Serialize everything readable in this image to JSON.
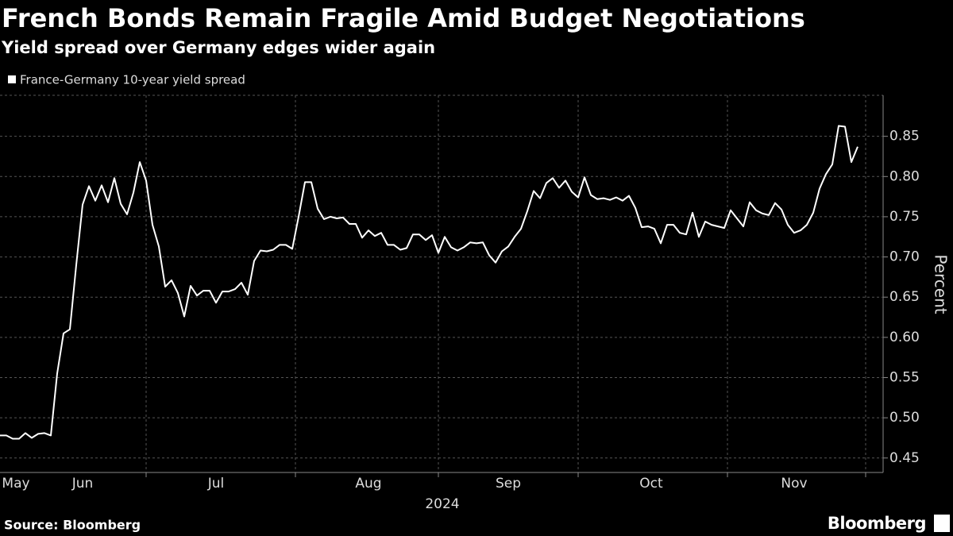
{
  "chart_data": {
    "type": "line",
    "title": "French Bonds Remain Fragile Amid Budget Negotiations",
    "subtitle": "Yield spread over Germany edges wider again",
    "ylabel": "Percent",
    "xlabel": "2024",
    "source": "Source: Bloomberg",
    "brand": "Bloomberg",
    "series": [
      {
        "name": "France-Germany 10-year yield spread",
        "color": "#ffffff",
        "values": [
          0.478,
          0.478,
          0.474,
          0.474,
          0.481,
          0.475,
          0.48,
          0.481,
          0.478,
          0.555,
          0.605,
          0.61,
          0.69,
          0.765,
          0.788,
          0.77,
          0.789,
          0.768,
          0.798,
          0.766,
          0.753,
          0.78,
          0.818,
          0.795,
          0.74,
          0.713,
          0.663,
          0.671,
          0.655,
          0.626,
          0.664,
          0.652,
          0.658,
          0.658,
          0.643,
          0.657,
          0.657,
          0.66,
          0.668,
          0.653,
          0.695,
          0.708,
          0.707,
          0.709,
          0.715,
          0.715,
          0.71,
          0.75,
          0.793,
          0.793,
          0.76,
          0.747,
          0.75,
          0.748,
          0.749,
          0.741,
          0.741,
          0.724,
          0.733,
          0.726,
          0.73,
          0.715,
          0.715,
          0.709,
          0.711,
          0.728,
          0.728,
          0.721,
          0.727,
          0.705,
          0.725,
          0.712,
          0.708,
          0.712,
          0.718,
          0.717,
          0.718,
          0.702,
          0.693,
          0.707,
          0.713,
          0.725,
          0.735,
          0.757,
          0.782,
          0.773,
          0.792,
          0.798,
          0.786,
          0.795,
          0.781,
          0.774,
          0.799,
          0.777,
          0.772,
          0.773,
          0.771,
          0.774,
          0.77,
          0.776,
          0.761,
          0.737,
          0.738,
          0.735,
          0.717,
          0.74,
          0.74,
          0.73,
          0.728,
          0.755,
          0.725,
          0.744,
          0.74,
          0.738,
          0.736,
          0.758,
          0.748,
          0.738,
          0.768,
          0.758,
          0.754,
          0.752,
          0.767,
          0.759,
          0.74,
          0.73,
          0.733,
          0.74,
          0.755,
          0.785,
          0.803,
          0.815,
          0.863,
          0.862,
          0.818,
          0.837
        ]
      }
    ],
    "xlim": [
      0,
      136.5
    ],
    "xticks": [
      {
        "value": 2.5,
        "label": "May"
      },
      {
        "value": 13,
        "label": "Jun"
      },
      {
        "value": 34,
        "label": "Jul"
      },
      {
        "value": 58,
        "label": "Aug"
      },
      {
        "value": 80,
        "label": "Sep"
      },
      {
        "value": 102.5,
        "label": "Oct"
      },
      {
        "value": 125,
        "label": "Nov"
      }
    ],
    "xticks_minor": [
      23,
      46.5,
      69,
      91,
      114.5,
      136.25
    ],
    "ylim": [
      0.432,
      0.901
    ],
    "yticks": [
      0.45,
      {
        "value": 0.5,
        "label": "0.50"
      },
      0.55,
      {
        "value": 0.6,
        "label": "0.60"
      },
      0.65,
      {
        "value": 0.7,
        "label": "0.70"
      },
      0.75,
      {
        "value": 0.8,
        "label": "0.80"
      },
      0.85
    ],
    "grid": true
  }
}
